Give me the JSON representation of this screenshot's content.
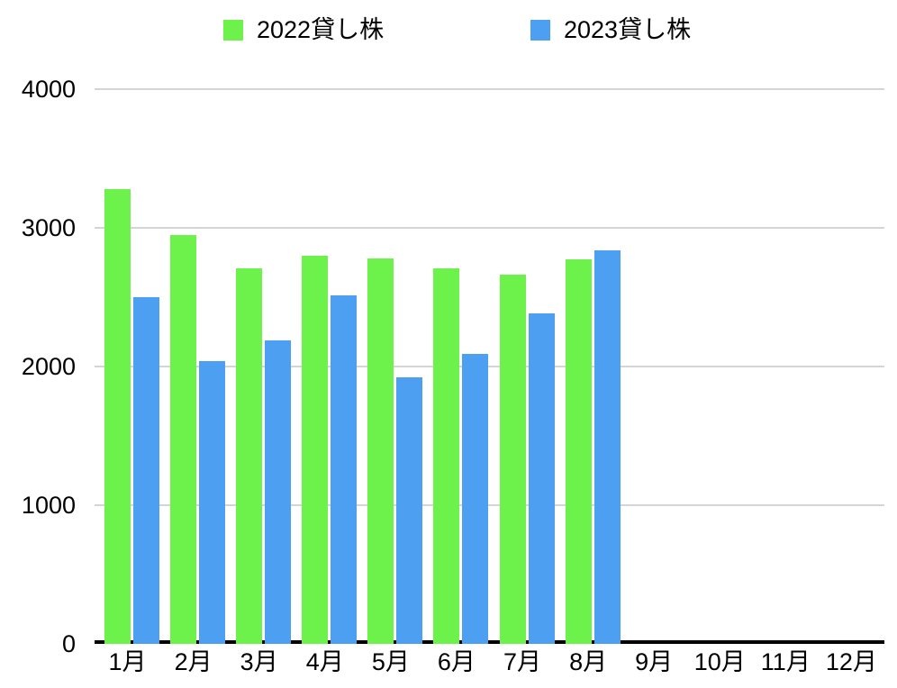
{
  "legend": {
    "items": [
      {
        "label": "2022貸し株",
        "color": "#6CF24B"
      },
      {
        "label": "2023貸し株",
        "color": "#4D9FF2"
      }
    ]
  },
  "chart_data": {
    "type": "bar",
    "title": "",
    "xlabel": "",
    "ylabel": "",
    "categories": [
      "1月",
      "2月",
      "3月",
      "4月",
      "5月",
      "6月",
      "7月",
      "8月",
      "9月",
      "10月",
      "11月",
      "12月"
    ],
    "series": [
      {
        "name": "2022貸し株",
        "color": "#6CF24B",
        "values": [
          3280,
          2950,
          2710,
          2800,
          2780,
          2710,
          2660,
          2770,
          null,
          null,
          null,
          null
        ]
      },
      {
        "name": "2023貸し株",
        "color": "#4D9FF2",
        "values": [
          2500,
          2040,
          2190,
          2510,
          1920,
          2090,
          2380,
          2840,
          null,
          null,
          null,
          null
        ]
      }
    ],
    "ylim": [
      0,
      4000
    ],
    "yticks": [
      0,
      1000,
      2000,
      3000,
      4000
    ],
    "grid": true,
    "legend_position": "top",
    "colors": {
      "gridline": "#d5d5d5",
      "axis_line": "#000000",
      "background": "#ffffff"
    }
  }
}
